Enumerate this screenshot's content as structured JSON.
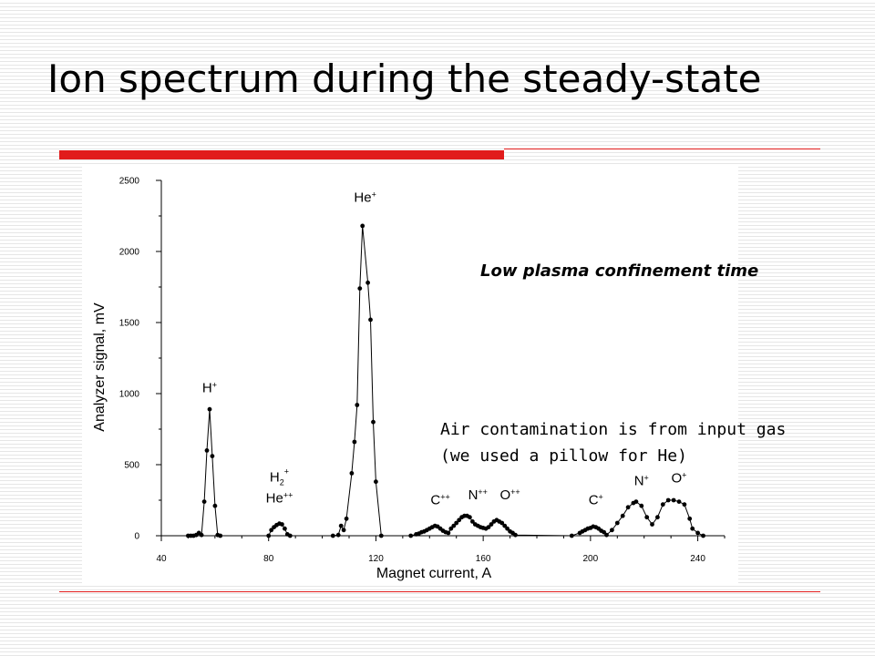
{
  "slide": {
    "title": "Ion spectrum during the steady-state"
  },
  "notes": {
    "confinement": "Low plasma confinement time",
    "air_line1": "Air contamination is from input gas",
    "air_line2": "(we used a pillow for He)"
  },
  "colors": {
    "accent": "#e11b1b",
    "stripe": "#e6e6e6",
    "series": "#000000"
  },
  "chart_data": {
    "type": "line",
    "xlabel": "Magnet current, A",
    "ylabel": "Analyzer signal, mV",
    "xlim": [
      40,
      250
    ],
    "ylim": [
      0,
      2500
    ],
    "xticks": [
      40,
      80,
      120,
      160,
      200,
      240
    ],
    "yticks": [
      0,
      500,
      1000,
      1500,
      2000,
      2500
    ],
    "x_minor_step": 10,
    "y_minor_step": 250,
    "grid": false,
    "markers": true,
    "series": [
      {
        "points": [
          [
            50,
            0
          ],
          [
            51,
            0
          ],
          [
            52,
            0
          ],
          [
            53,
            5
          ],
          [
            54,
            20
          ],
          [
            55,
            5
          ],
          [
            56,
            240
          ],
          [
            57,
            600
          ],
          [
            58,
            890
          ],
          [
            59,
            560
          ],
          [
            60,
            210
          ],
          [
            61,
            5
          ],
          [
            62,
            0
          ],
          [
            80,
            0
          ],
          [
            81,
            40
          ],
          [
            82,
            60
          ],
          [
            83,
            75
          ],
          [
            84,
            85
          ],
          [
            85,
            80
          ],
          [
            86,
            50
          ],
          [
            87,
            10
          ],
          [
            88,
            0
          ],
          [
            104,
            0
          ],
          [
            106,
            5
          ],
          [
            107,
            70
          ],
          [
            108,
            40
          ],
          [
            109,
            120
          ],
          [
            111,
            440
          ],
          [
            112,
            660
          ],
          [
            113,
            920
          ],
          [
            114,
            1740
          ],
          [
            115,
            2180
          ],
          [
            117,
            1780
          ],
          [
            118,
            1520
          ],
          [
            119,
            800
          ],
          [
            120,
            380
          ],
          [
            122,
            0
          ],
          [
            133,
            0
          ],
          [
            135,
            10
          ],
          [
            136,
            15
          ],
          [
            137,
            25
          ],
          [
            138,
            30
          ],
          [
            139,
            40
          ],
          [
            140,
            50
          ],
          [
            141,
            60
          ],
          [
            142,
            70
          ],
          [
            143,
            65
          ],
          [
            144,
            50
          ],
          [
            145,
            35
          ],
          [
            146,
            25
          ],
          [
            147,
            20
          ],
          [
            148,
            50
          ],
          [
            149,
            70
          ],
          [
            150,
            90
          ],
          [
            151,
            110
          ],
          [
            152,
            130
          ],
          [
            153,
            140
          ],
          [
            154,
            140
          ],
          [
            155,
            130
          ],
          [
            156,
            100
          ],
          [
            157,
            80
          ],
          [
            158,
            70
          ],
          [
            159,
            60
          ],
          [
            160,
            55
          ],
          [
            161,
            50
          ],
          [
            162,
            60
          ],
          [
            163,
            80
          ],
          [
            164,
            100
          ],
          [
            165,
            110
          ],
          [
            166,
            100
          ],
          [
            167,
            90
          ],
          [
            168,
            70
          ],
          [
            169,
            50
          ],
          [
            170,
            30
          ],
          [
            171,
            20
          ],
          [
            172,
            5
          ],
          [
            193,
            0
          ],
          [
            196,
            20
          ],
          [
            197,
            30
          ],
          [
            198,
            40
          ],
          [
            199,
            50
          ],
          [
            200,
            55
          ],
          [
            201,
            65
          ],
          [
            202,
            60
          ],
          [
            203,
            50
          ],
          [
            204,
            35
          ],
          [
            205,
            25
          ],
          [
            206,
            5
          ],
          [
            208,
            40
          ],
          [
            210,
            90
          ],
          [
            212,
            140
          ],
          [
            214,
            200
          ],
          [
            216,
            230
          ],
          [
            217,
            240
          ],
          [
            219,
            210
          ],
          [
            221,
            130
          ],
          [
            223,
            80
          ],
          [
            225,
            130
          ],
          [
            227,
            220
          ],
          [
            229,
            250
          ],
          [
            231,
            250
          ],
          [
            233,
            240
          ],
          [
            235,
            220
          ],
          [
            237,
            120
          ],
          [
            238,
            50
          ],
          [
            240,
            20
          ],
          [
            242,
            0
          ]
        ]
      }
    ],
    "annotations": [
      {
        "x": 58,
        "y": 1010,
        "label": "H",
        "sup": "+"
      },
      {
        "x": 84,
        "y": 380,
        "label": "H",
        "sub": "2",
        "sup": "+"
      },
      {
        "x": 84,
        "y": 235,
        "label": "He",
        "sup": "++"
      },
      {
        "x": 116,
        "y": 2350,
        "label": "He",
        "sup": "+"
      },
      {
        "x": 144,
        "y": 220,
        "label": "C",
        "sup": "++"
      },
      {
        "x": 158,
        "y": 255,
        "label": "N",
        "sup": "++"
      },
      {
        "x": 170,
        "y": 255,
        "label": "O",
        "sup": "++"
      },
      {
        "x": 202,
        "y": 220,
        "label": "C",
        "sup": "+"
      },
      {
        "x": 219,
        "y": 355,
        "label": "N",
        "sup": "+"
      },
      {
        "x": 233,
        "y": 375,
        "label": "O",
        "sup": "+"
      }
    ]
  }
}
